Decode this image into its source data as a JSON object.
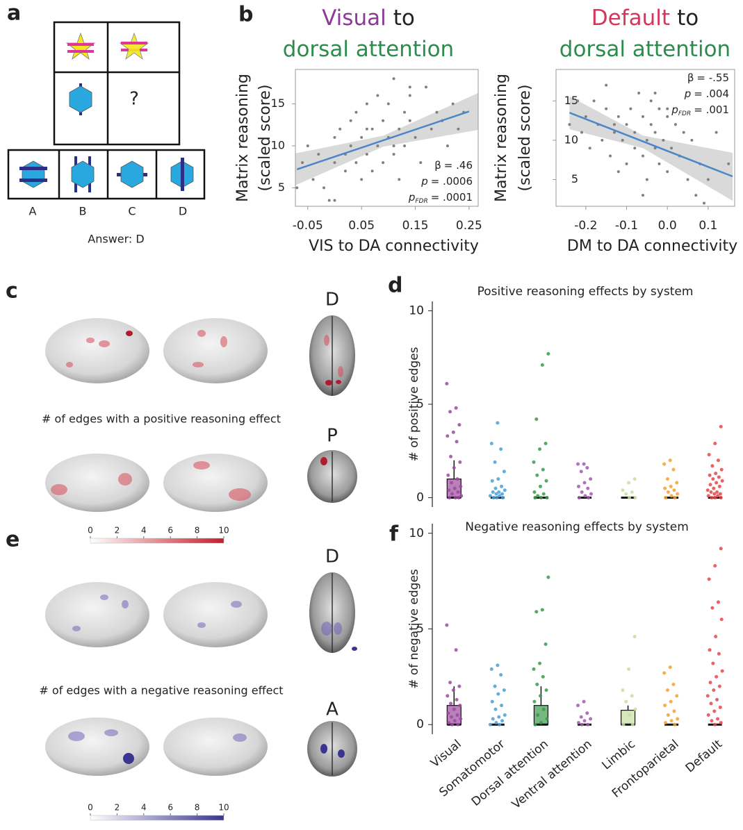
{
  "panel_labels": [
    "a",
    "b",
    "c",
    "d",
    "e",
    "f"
  ],
  "puzzle": {
    "question": "?",
    "options": [
      "A",
      "B",
      "C",
      "D"
    ],
    "answer": "Answer: D"
  },
  "brain": {
    "positive_caption": "# of edges with a positive reasoning effect",
    "negative_caption": "# of edges with a negative reasoning effect",
    "views": [
      "D",
      "P",
      "D",
      "A"
    ],
    "colorbars": [
      {
        "ticks": [
          0,
          2,
          4,
          6,
          8,
          10
        ],
        "colors": [
          "#ffffff",
          "#c41e2a"
        ]
      },
      {
        "ticks": [
          0,
          2,
          4,
          6,
          8,
          10
        ],
        "colors": [
          "#ffffff",
          "#3b3590"
        ]
      }
    ]
  },
  "chart_data": [
    {
      "type": "scatter",
      "title_lines": [
        [
          {
            "text": "Visual",
            "color": "#8b3a96"
          },
          {
            "text": "to",
            "color": "#222222"
          }
        ],
        [
          {
            "text": "dorsal attention",
            "color": "#2e8b4e"
          }
        ]
      ],
      "ylabel": [
        "Matrix reasoning",
        "(scaled score)"
      ],
      "xlabel": "VIS to DA connectivity",
      "xlim": [
        -0.073,
        0.267
      ],
      "ylim": [
        2.8,
        19.1
      ],
      "xticks": [
        -0.05,
        0.05,
        0.15,
        0.25
      ],
      "yticks": [
        5,
        10,
        15
      ],
      "color": "#808080",
      "fit_color": "#4a86c8",
      "band_color": "#d9d9d9",
      "x": [
        -0.06,
        -0.05,
        -0.04,
        -0.03,
        -0.02,
        -0.01,
        0.0,
        0.0,
        0.01,
        0.02,
        0.02,
        0.03,
        0.03,
        0.04,
        0.04,
        0.05,
        0.05,
        0.06,
        0.06,
        0.07,
        0.07,
        0.08,
        0.08,
        0.09,
        0.09,
        0.1,
        0.1,
        0.11,
        0.11,
        0.12,
        0.12,
        0.13,
        0.13,
        0.14,
        0.14,
        0.15,
        0.16,
        0.17,
        0.18,
        0.19,
        0.2,
        0.21,
        0.22,
        0.23,
        0.24,
        -0.07,
        0.0,
        0.06,
        0.11,
        0.14
      ],
      "y": [
        8,
        10,
        6,
        9,
        5,
        3.5,
        8,
        11,
        12,
        9,
        7,
        10,
        13,
        8,
        14,
        6,
        11,
        9,
        15,
        12,
        7,
        16,
        10,
        8,
        13,
        11,
        15,
        9,
        18,
        12,
        6,
        14,
        10,
        13,
        16,
        11,
        8,
        17,
        12,
        14,
        13,
        10,
        15,
        12,
        14,
        5,
        3.5,
        12,
        10,
        17
      ],
      "fit_x": [
        -0.07,
        0.25
      ],
      "fit_y": [
        7.2,
        14.1
      ],
      "ci_x": [
        -0.073,
        0.09,
        0.267
      ],
      "ci_lower": [
        5.3,
        9.9,
        11.9
      ],
      "ci_upper": [
        9.1,
        11.2,
        16.3
      ],
      "stats": [
        {
          "symbol": "β",
          "text": "= .46"
        },
        {
          "symbol": "p",
          "text": "= .0006"
        },
        {
          "symbol": "p",
          "sub": "FDR",
          "text": "= .0001"
        }
      ]
    },
    {
      "type": "scatter",
      "title_lines": [
        [
          {
            "text": "Default",
            "color": "#d6365a"
          },
          {
            "text": "to",
            "color": "#222222"
          }
        ],
        [
          {
            "text": "dorsal attention",
            "color": "#2e8b4e"
          }
        ]
      ],
      "ylabel": [
        "Matrix reasoning",
        "(scaled score)"
      ],
      "xlabel": "DM to DA connectivity",
      "xlim": [
        -0.273,
        0.165
      ],
      "ylim": [
        1.6,
        19
      ],
      "xticks": [
        -0.2,
        -0.1,
        {
          "value": 0,
          "label": "0.0"
        },
        0.1
      ],
      "yticks": [
        5,
        10,
        15
      ],
      "color": "#808080",
      "fit_color": "#4a86c8",
      "band_color": "#d9d9d9",
      "x": [
        -0.24,
        -0.22,
        -0.21,
        -0.2,
        -0.19,
        -0.18,
        -0.17,
        -0.16,
        -0.15,
        -0.15,
        -0.14,
        -0.13,
        -0.12,
        -0.12,
        -0.11,
        -0.1,
        -0.1,
        -0.09,
        -0.08,
        -0.08,
        -0.07,
        -0.06,
        -0.06,
        -0.05,
        -0.05,
        -0.04,
        -0.04,
        -0.03,
        -0.03,
        -0.02,
        -0.02,
        -0.01,
        0.0,
        0.0,
        0.01,
        0.02,
        0.03,
        0.04,
        0.05,
        0.06,
        0.07,
        0.08,
        0.09,
        0.1,
        0.12,
        0.15,
        -0.13,
        -0.06,
        -0.03,
        0.0
      ],
      "y": [
        12,
        15,
        11,
        13,
        9,
        15,
        12,
        10,
        14,
        17,
        8,
        11,
        13,
        6,
        10,
        12,
        7,
        14,
        9,
        11,
        16,
        8,
        13,
        10,
        5,
        12,
        15,
        9,
        11,
        7,
        14,
        10,
        13,
        6,
        9,
        12,
        8,
        11,
        5,
        10,
        3,
        7,
        2,
        5,
        11,
        7,
        12,
        3,
        16,
        14
      ],
      "fit_x": [
        -0.24,
        0.16
      ],
      "fit_y": [
        13.5,
        5.4
      ],
      "ci_x": [
        -0.24,
        -0.06,
        0.16
      ],
      "ci_lower": [
        11.4,
        9.0,
        2.3
      ],
      "ci_upper": [
        15.6,
        10.6,
        8.4
      ],
      "stats": [
        {
          "symbol": "β",
          "text": "= -.55"
        },
        {
          "symbol": "p",
          "text": "= .004"
        },
        {
          "symbol": "p",
          "sub": "FDR",
          "text": "= .001"
        }
      ]
    },
    {
      "type": "strip",
      "title": "Positive reasoning effects by system",
      "ylabel": "# of positive edges",
      "ylim": [
        -0.5,
        10.5
      ],
      "yticks": [
        0,
        5,
        10
      ],
      "colors": [
        "#9b4a9e",
        "#4a9fd5",
        "#3a9a4a",
        "#a05ab0",
        "#c5dea0",
        "#f5a030",
        "#e8474a"
      ],
      "values": [
        [
          6.1,
          4.8,
          4.6,
          3.9,
          3.5,
          3.3,
          3.0,
          2.2,
          1.9,
          1.6,
          1.2,
          1.0,
          0.8,
          0.6,
          0.5,
          0.4,
          0.3,
          0.2,
          0.1,
          0,
          0,
          0
        ],
        [
          4.0,
          2.9,
          2.6,
          1.9,
          1.4,
          1.0,
          0.9,
          0.6,
          0.5,
          0.4,
          0.3,
          0.3,
          0.2,
          0.2,
          0.1,
          0.1,
          0,
          0,
          0
        ],
        [
          7.7,
          7.1,
          4.2,
          2.9,
          2.6,
          1.9,
          1.5,
          1.2,
          0.9,
          0.6,
          0.3,
          0.2,
          0.1,
          0,
          0,
          0
        ],
        [
          1.8,
          1.8,
          1.6,
          1.4,
          1.0,
          0.8,
          0.6,
          0.5,
          0.3,
          0.2,
          0.1,
          0,
          0
        ],
        [
          1.0,
          0.8,
          0.4,
          0.3,
          0.2,
          0,
          0
        ],
        [
          2.0,
          1.8,
          1.5,
          1.0,
          0.8,
          0.6,
          0.5,
          0.4,
          0.3,
          0.2,
          0.1,
          0,
          0
        ],
        [
          3.8,
          2.9,
          2.3,
          2.0,
          1.7,
          1.5,
          1.3,
          1.2,
          1.1,
          1.0,
          0.9,
          0.8,
          0.7,
          0.6,
          0.5,
          0.4,
          0.3,
          0.3,
          0.2,
          0.2,
          0.1,
          0.1,
          0,
          0,
          0
        ]
      ],
      "boxes": [
        {
          "low": 0,
          "q1": 0,
          "median": 0,
          "q3": 1,
          "high": 2
        },
        {
          "low": 0,
          "q1": 0,
          "median": 0,
          "q3": 0,
          "high": 0
        },
        {
          "low": 0,
          "q1": 0,
          "median": 0,
          "q3": 0,
          "high": 0
        },
        {
          "low": 0,
          "q1": 0,
          "median": 0,
          "q3": 0,
          "high": 0
        },
        {
          "low": 0,
          "q1": 0,
          "median": 0,
          "q3": 0,
          "high": 0
        },
        {
          "low": 0,
          "q1": 0,
          "median": 0,
          "q3": 0,
          "high": 0
        },
        {
          "low": 0,
          "q1": 0,
          "median": 0,
          "q3": 0,
          "high": 0
        }
      ]
    },
    {
      "type": "strip",
      "title": "Negative reasoning effects by system",
      "ylabel": "# of negative edges",
      "categories": [
        "Visual",
        "Somatomotor",
        "Dorsal attention",
        "Ventral attention",
        "Limbic",
        "Frontoparietal",
        "Default"
      ],
      "ylim": [
        -0.5,
        10.5
      ],
      "yticks": [
        0,
        5,
        10
      ],
      "colors": [
        "#9b4a9e",
        "#4a9fd5",
        "#3a9a4a",
        "#a05ab0",
        "#c5dea0",
        "#f5a030",
        "#e8474a"
      ],
      "values": [
        [
          5.2,
          3.9,
          2.2,
          2.0,
          1.8,
          1.5,
          1.3,
          1.1,
          1.0,
          0.8,
          0.6,
          0.5,
          0.4,
          0.3,
          0.2,
          0.1,
          0,
          0
        ],
        [
          3.1,
          2.9,
          2.6,
          2.0,
          1.8,
          1.6,
          1.2,
          1.0,
          0.8,
          0.5,
          0.4,
          0.3,
          0.2,
          0.1,
          0,
          0
        ],
        [
          7.7,
          6.0,
          5.9,
          4.2,
          3.2,
          2.9,
          2.5,
          2.1,
          1.8,
          1.5,
          1.2,
          0.8,
          0.5,
          0.3,
          0.1,
          0
        ],
        [
          1.2,
          1.0,
          0.6,
          0.4,
          0.3,
          0.2,
          0.1,
          0,
          0
        ],
        [
          4.6,
          2.9,
          1.8,
          1.5,
          1.2,
          0.8,
          0.5,
          0,
          0
        ],
        [
          3.0,
          2.7,
          2.1,
          1.8,
          1.5,
          1.2,
          1.0,
          0.7,
          0.5,
          0.3,
          0.2,
          0.1,
          0
        ],
        [
          9.2,
          8.3,
          7.6,
          6.4,
          6.1,
          5.5,
          4.6,
          3.9,
          3.7,
          3.2,
          2.8,
          2.5,
          2.2,
          2.0,
          1.8,
          1.5,
          1.3,
          1.1,
          0.9,
          0.7,
          0.5,
          0.3,
          0.2,
          0.1,
          0
        ]
      ],
      "boxes": [
        {
          "low": 0,
          "q1": 0,
          "median": 0,
          "q3": 1,
          "high": 2
        },
        {
          "low": 0,
          "q1": 0,
          "median": 0,
          "q3": 0,
          "high": 0
        },
        {
          "low": 0,
          "q1": 0,
          "median": 0,
          "q3": 1,
          "high": 2
        },
        {
          "low": 0,
          "q1": 0,
          "median": 0,
          "q3": 0,
          "high": 0
        },
        {
          "low": 0,
          "q1": 0,
          "median": 0,
          "q3": 0.75,
          "high": 1
        },
        {
          "low": 0,
          "q1": 0,
          "median": 0,
          "q3": 0,
          "high": 0
        },
        {
          "low": 0,
          "q1": 0,
          "median": 0,
          "q3": 0,
          "high": 0
        }
      ]
    }
  ]
}
